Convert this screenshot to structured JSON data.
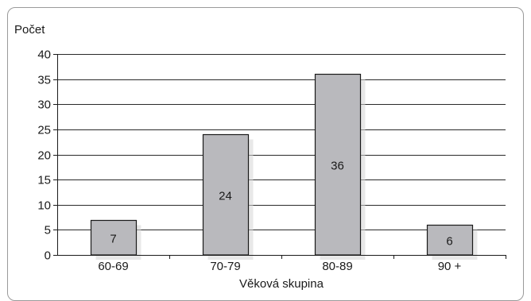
{
  "chart_data": {
    "type": "bar",
    "title": "",
    "ylabel": "Počet",
    "xlabel": "Věková skupina",
    "categories": [
      "60-69",
      "70-79",
      "80-89",
      "90 +"
    ],
    "values": [
      7,
      24,
      36,
      6
    ],
    "data_labels": [
      "7",
      "24",
      "36",
      "6"
    ],
    "yticks": [
      0,
      5,
      10,
      15,
      20,
      25,
      30,
      35,
      40
    ],
    "ylim": [
      0,
      40
    ],
    "grid": true,
    "legend": "none",
    "bar_color": "#b9b9bd"
  }
}
